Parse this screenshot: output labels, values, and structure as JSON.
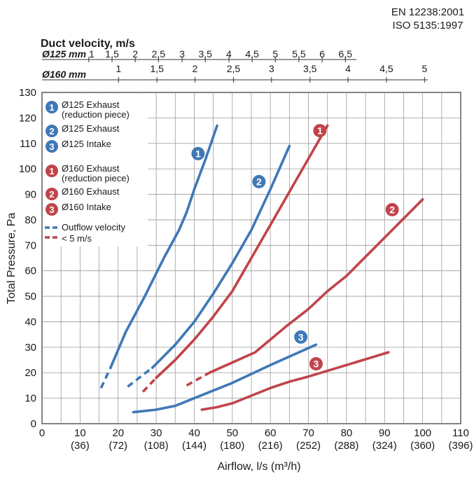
{
  "standards": [
    "EN 12238:2001",
    "ISO 5135:1997"
  ],
  "chart_data": {
    "type": "line",
    "xlabel": "Airflow, l/s (m³/h)",
    "ylabel": "Total Pressure, Pa",
    "xlim": [
      0,
      110
    ],
    "ylim": [
      0,
      130
    ],
    "x_ticks": [
      0,
      10,
      20,
      30,
      40,
      50,
      60,
      70,
      80,
      90,
      100,
      110
    ],
    "x_ticks_secondary": [
      "(36)",
      "(72)",
      "(108)",
      "(144)",
      "(180)",
      "(216)",
      "(252)",
      "(288)",
      "(324)",
      "(360)",
      "(396)"
    ],
    "y_ticks": [
      0,
      10,
      20,
      30,
      40,
      50,
      60,
      70,
      80,
      90,
      100,
      110,
      120,
      130
    ],
    "grid": true,
    "top_axis": {
      "title": "Duct velocity, m/s",
      "rows": [
        {
          "label": "Ø125 mm",
          "ticks": [
            "1",
            "1,5",
            "2",
            "2,5",
            "3",
            "3,5",
            "4",
            "4,5",
            "5",
            "5,5",
            "6",
            "6,5"
          ],
          "x": [
            12.3,
            18.4,
            24.5,
            30.6,
            36.8,
            42.9,
            49.1,
            55.2,
            61.3,
            67.5,
            73.6,
            79.7
          ]
        },
        {
          "label": "Ø160 mm",
          "ticks": [
            "1",
            "1,5",
            "2",
            "2,5",
            "3",
            "3,5",
            "4",
            "4,5",
            "5"
          ],
          "x": [
            20.1,
            30.2,
            40.2,
            50.3,
            60.3,
            70.4,
            80.4,
            90.5,
            100.5
          ]
        }
      ]
    },
    "legend": {
      "placement": "top-left",
      "items": [
        {
          "marker": "1",
          "label": "Ø125 Exhaust",
          "sublabel": "(reduction piece)",
          "color": "#3f78b7"
        },
        {
          "marker": "2",
          "label": "Ø125 Exhaust",
          "color": "#3f78b7"
        },
        {
          "marker": "3",
          "label": "Ø125 Intake",
          "color": "#3f78b7"
        },
        {
          "marker": "1",
          "label": "Ø160 Exhaust",
          "sublabel": "(reduction piece)",
          "color": "#c0444a"
        },
        {
          "marker": "2",
          "label": "Ø160 Exhaust",
          "color": "#c0444a"
        },
        {
          "marker": "3",
          "label": "Ø160 Intake",
          "color": "#c0444a"
        }
      ],
      "dashed_note": [
        "Outflow velocity",
        "< 5 m/s"
      ]
    },
    "series": [
      {
        "marker": "1",
        "label": "Ø125 Exhaust (reduction piece)",
        "color": "#3f78b7",
        "dashed_until": 18,
        "points": [
          [
            15.5,
            14
          ],
          [
            18,
            22
          ],
          [
            22,
            36
          ],
          [
            27,
            50
          ],
          [
            32,
            65
          ],
          [
            36,
            76
          ],
          [
            38,
            83
          ],
          [
            40,
            92
          ],
          [
            43,
            104
          ],
          [
            46,
            117
          ]
        ],
        "marker_at": [
          41,
          106
        ]
      },
      {
        "marker": "2",
        "label": "Ø125 Exhaust",
        "color": "#3f78b7",
        "dashed_until": 29,
        "points": [
          [
            22.5,
            14.5
          ],
          [
            29,
            22
          ],
          [
            35,
            31
          ],
          [
            40,
            40
          ],
          [
            45,
            51
          ],
          [
            50,
            63
          ],
          [
            55,
            76
          ],
          [
            60,
            92
          ],
          [
            65,
            109
          ]
        ],
        "marker_at": [
          57,
          95
        ]
      },
      {
        "marker": "3",
        "label": "Ø125 Intake",
        "color": "#3f78b7",
        "dashed_until": null,
        "points": [
          [
            24,
            4.5
          ],
          [
            30,
            5.5
          ],
          [
            35,
            7
          ],
          [
            40,
            10
          ],
          [
            50,
            16
          ],
          [
            60,
            23
          ],
          [
            72,
            31
          ]
        ],
        "marker_at": [
          68,
          34
        ]
      },
      {
        "marker": "1",
        "label": "Ø160 Exhaust (reduction piece)",
        "color": "#c0444a",
        "dashed_until": 30,
        "points": [
          [
            26.5,
            12.5
          ],
          [
            30,
            18
          ],
          [
            35,
            25
          ],
          [
            40,
            33
          ],
          [
            45,
            42
          ],
          [
            50,
            52
          ],
          [
            55,
            65
          ],
          [
            60,
            78
          ],
          [
            65,
            91
          ],
          [
            70,
            104
          ],
          [
            75,
            117
          ]
        ],
        "marker_at": [
          73,
          115
        ]
      },
      {
        "marker": "2",
        "label": "Ø160 Exhaust",
        "color": "#c0444a",
        "dashed_until": 44,
        "points": [
          [
            38,
            15
          ],
          [
            44,
            20
          ],
          [
            50,
            24
          ],
          [
            56,
            28
          ],
          [
            60,
            33
          ],
          [
            64,
            38
          ],
          [
            70,
            45
          ],
          [
            75,
            52
          ],
          [
            80,
            58
          ],
          [
            90,
            73
          ],
          [
            100,
            88
          ]
        ],
        "marker_at": [
          92,
          84
        ]
      },
      {
        "marker": "3",
        "label": "Ø160 Intake",
        "color": "#c0444a",
        "dashed_until": null,
        "points": [
          [
            42,
            5.5
          ],
          [
            46,
            6.5
          ],
          [
            50,
            8
          ],
          [
            55,
            11
          ],
          [
            60,
            14
          ],
          [
            65,
            16.5
          ],
          [
            70,
            18.5
          ],
          [
            80,
            23
          ],
          [
            91,
            28
          ]
        ],
        "marker_at": [
          72,
          23.5
        ]
      }
    ]
  }
}
